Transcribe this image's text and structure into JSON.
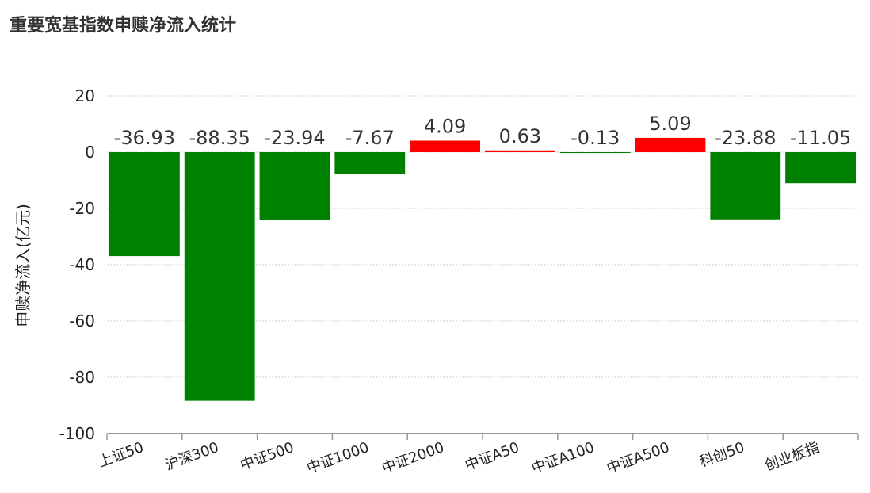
{
  "chart_data": {
    "type": "bar",
    "title": "重要宽基指数申赎净流入统计",
    "ylabel": "申赎净流入(亿元)",
    "xlabel": "",
    "categories": [
      "上证50",
      "沪深300",
      "中证500",
      "中证1000",
      "中证2000",
      "中证A50",
      "中证A100",
      "中证A500",
      "科创50",
      "创业板指"
    ],
    "values": [
      -36.93,
      -88.35,
      -23.94,
      -7.67,
      4.09,
      0.63,
      -0.13,
      5.09,
      -23.88,
      -11.05
    ],
    "data_labels": [
      "-36.93",
      "-88.35",
      "-23.94",
      "-7.67",
      "4.09",
      "0.63",
      "-0.13",
      "5.09",
      "-23.88",
      "-11.05"
    ],
    "ylim": [
      -100,
      20
    ],
    "yticks": [
      20,
      0,
      -20,
      -40,
      -60,
      -80,
      -100
    ],
    "grid": "horizontal-dotted",
    "colors": {
      "positive": "#ff0000",
      "negative": "#008000"
    }
  }
}
